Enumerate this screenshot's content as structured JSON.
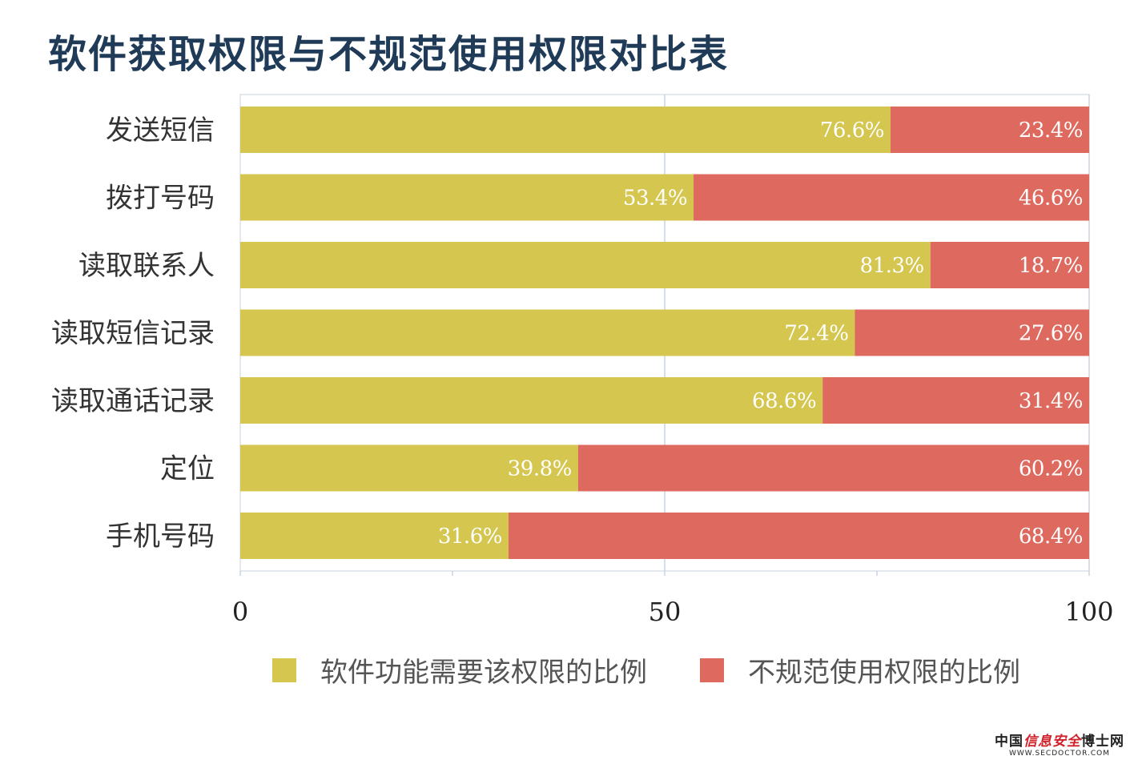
{
  "page": {
    "title": "软件获取权限与不规范使用权限对比表"
  },
  "chart_data": {
    "type": "bar",
    "orientation": "horizontal",
    "stacked": true,
    "categories": [
      "发送短信",
      "拨打号码",
      "读取联系人",
      "读取短信记录",
      "读取通话记录",
      "定位",
      "手机号码"
    ],
    "series": [
      {
        "name": "软件功能需要该权限的比例",
        "color": "#d4c64e",
        "values": [
          76.6,
          53.4,
          81.3,
          72.4,
          68.6,
          39.8,
          31.6
        ],
        "labels": [
          "76.6%",
          "53.4%",
          "81.3%",
          "72.4%",
          "68.6%",
          "39.8%",
          "31.6%"
        ]
      },
      {
        "name": "不规范使用权限的比例",
        "color": "#de695e",
        "values": [
          23.4,
          46.6,
          18.7,
          27.6,
          31.4,
          60.2,
          68.4
        ],
        "labels": [
          "23.4%",
          "46.6%",
          "18.7%",
          "27.6%",
          "31.4%",
          "60.2%",
          "68.4%"
        ]
      }
    ],
    "xlim": [
      0,
      100
    ],
    "xticks": [
      0,
      50,
      100
    ],
    "xtick_labels": [
      "0",
      "50",
      "100"
    ],
    "grid": true,
    "legend_position": "bottom"
  },
  "watermark": {
    "main_black_1": "中国",
    "main_red": "信息安全",
    "main_black_2": "博士网",
    "sub": "WWW.SECDOCTOR.COM"
  }
}
